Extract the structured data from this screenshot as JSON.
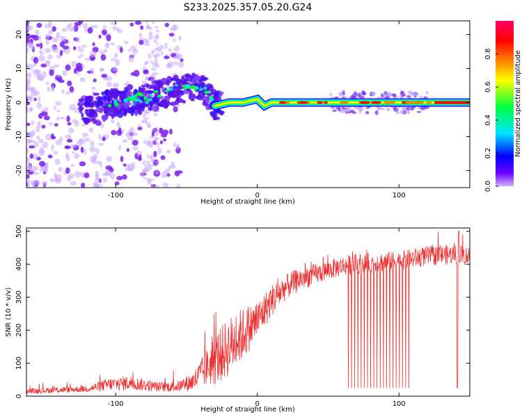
{
  "title": "S233.2025.357.05.20.G24",
  "chart_data": [
    {
      "type": "heatmap",
      "xlabel": "Height of straight line (km)",
      "ylabel": "Frequency (Hz)",
      "xlim": [
        -163,
        150
      ],
      "ylim": [
        -25,
        24
      ],
      "xticks": [
        -100,
        0,
        100
      ],
      "xtick_labels": [
        "-100",
        "0",
        "100"
      ],
      "yticks": [
        -20,
        -10,
        0,
        10,
        20
      ],
      "ytick_labels": [
        "-20",
        "-10",
        "0",
        "10",
        "20"
      ],
      "colorbar": {
        "label": "Normalized spectral amplitude",
        "range": [
          0,
          1
        ],
        "ticks": [
          0.0,
          0.2,
          0.4,
          0.6,
          0.8
        ],
        "tick_labels": [
          "0.0",
          "0.2",
          "0.4",
          "0.6",
          "0.8"
        ],
        "colormap": [
          "#d0b0ff",
          "#6a00ff",
          "#0000ff",
          "#00e5ff",
          "#00ff40",
          "#ffff00",
          "#ff8000",
          "#ff0000",
          "#ff0066"
        ]
      },
      "ridge": [
        {
          "x": -120,
          "y": -2
        },
        {
          "x": -100,
          "y": 0
        },
        {
          "x": -85,
          "y": 1
        },
        {
          "x": -70,
          "y": 2
        },
        {
          "x": -55,
          "y": 4
        },
        {
          "x": -40,
          "y": 5
        },
        {
          "x": -30,
          "y": -1
        },
        {
          "x": -20,
          "y": 0
        },
        {
          "x": -10,
          "y": 0
        },
        {
          "x": 0,
          "y": 1
        },
        {
          "x": 5,
          "y": -1
        },
        {
          "x": 10,
          "y": 0
        },
        {
          "x": 15,
          "y": 0
        },
        {
          "x": 150,
          "y": 0
        }
      ]
    },
    {
      "type": "line",
      "xlabel": "Height of straight line (km)",
      "ylabel": "SNR (10 * v/v)",
      "xlim": [
        -163,
        150
      ],
      "ylim": [
        0,
        510
      ],
      "xticks": [
        -100,
        0,
        100
      ],
      "xtick_labels": [
        "-100",
        "0",
        "100"
      ],
      "yticks": [
        0,
        100,
        200,
        300,
        400,
        500
      ],
      "ytick_labels": [
        "0",
        "100",
        "200",
        "300",
        "400",
        "500"
      ],
      "series": [
        {
          "name": "SNR",
          "color": "#ee3030",
          "trend_x": [
            -163,
            -120,
            -105,
            -90,
            -70,
            -55,
            -45,
            -35,
            -30,
            -20,
            -10,
            0,
            10,
            20,
            30,
            45,
            60,
            80,
            100,
            120,
            140,
            150
          ],
          "trend_y": [
            15,
            22,
            35,
            40,
            28,
            30,
            45,
            90,
            110,
            150,
            190,
            230,
            290,
            330,
            355,
            375,
            395,
            405,
            410,
            425,
            430,
            425
          ],
          "spread_y": [
            8,
            10,
            20,
            22,
            15,
            18,
            30,
            60,
            80,
            90,
            80,
            60,
            50,
            40,
            35,
            30,
            30,
            30,
            30,
            30,
            30,
            30
          ],
          "dropouts": {
            "regions": [
              [
                64,
                108
              ],
              [
                141,
                142
              ]
            ],
            "min_value": 25
          }
        }
      ]
    }
  ]
}
